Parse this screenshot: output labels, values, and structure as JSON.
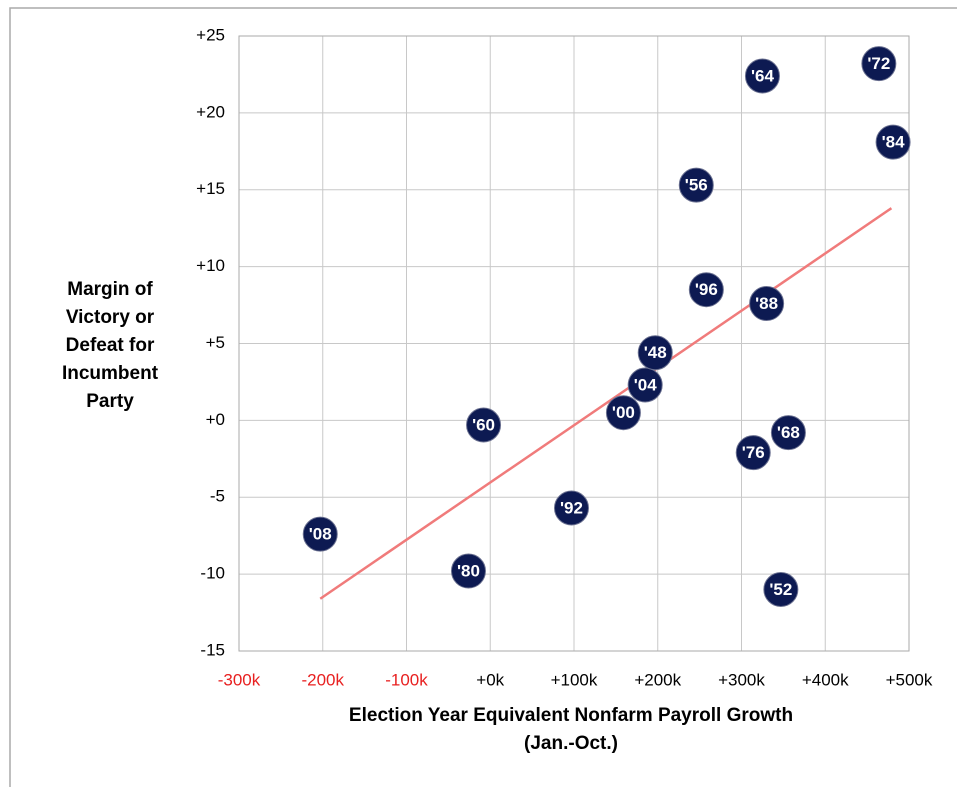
{
  "chart_data": {
    "type": "scatter",
    "y_label_lines": [
      "Margin of",
      "Victory or",
      "Defeat for",
      "Incumbent",
      "Party"
    ],
    "x_label_lines": [
      "Election Year Equivalent  Nonfarm Payroll Growth",
      "(Jan.-Oct.)"
    ],
    "xlim": [
      -300000,
      500000
    ],
    "ylim": [
      -15,
      25
    ],
    "xticks": [
      {
        "value": -300000,
        "label": "-300k"
      },
      {
        "value": -200000,
        "label": "-200k"
      },
      {
        "value": -100000,
        "label": "-100k"
      },
      {
        "value": 0,
        "label": "+0k"
      },
      {
        "value": 100000,
        "label": "+100k"
      },
      {
        "value": 200000,
        "label": "+200k"
      },
      {
        "value": 300000,
        "label": "+300k"
      },
      {
        "value": 400000,
        "label": "+400k"
      },
      {
        "value": 500000,
        "label": "+500k"
      }
    ],
    "yticks": [
      {
        "value": 25,
        "label": "+25"
      },
      {
        "value": 20,
        "label": "+20"
      },
      {
        "value": 15,
        "label": "+15"
      },
      {
        "value": 10,
        "label": "+10"
      },
      {
        "value": 5,
        "label": "+5"
      },
      {
        "value": 0,
        "label": "+0"
      },
      -5,
      -10,
      -15
    ],
    "grid": true,
    "negative_xtick_color": "#e82020",
    "point_color": "#0d1a52",
    "labels": [
      "'08",
      "'80",
      "'60",
      "'92",
      "'00",
      "'04",
      "'48",
      "'56",
      "'96",
      "'88",
      "'76",
      "'68",
      "'52",
      "'64",
      "'72",
      "'84"
    ],
    "x": [
      -203000,
      -26000,
      -8000,
      97000,
      159000,
      185000,
      197000,
      246000,
      258000,
      330000,
      314000,
      356000,
      347000,
      325000,
      464000,
      481000
    ],
    "y": [
      -7.4,
      -9.8,
      -0.3,
      -5.7,
      0.5,
      2.3,
      4.4,
      15.3,
      8.5,
      7.6,
      -2.1,
      -0.8,
      -11.0,
      22.4,
      23.2,
      18.1
    ],
    "trend": {
      "color": "#f07b7b",
      "x": [
        -203000,
        479000
      ],
      "y": [
        -11.6,
        13.8
      ]
    }
  }
}
